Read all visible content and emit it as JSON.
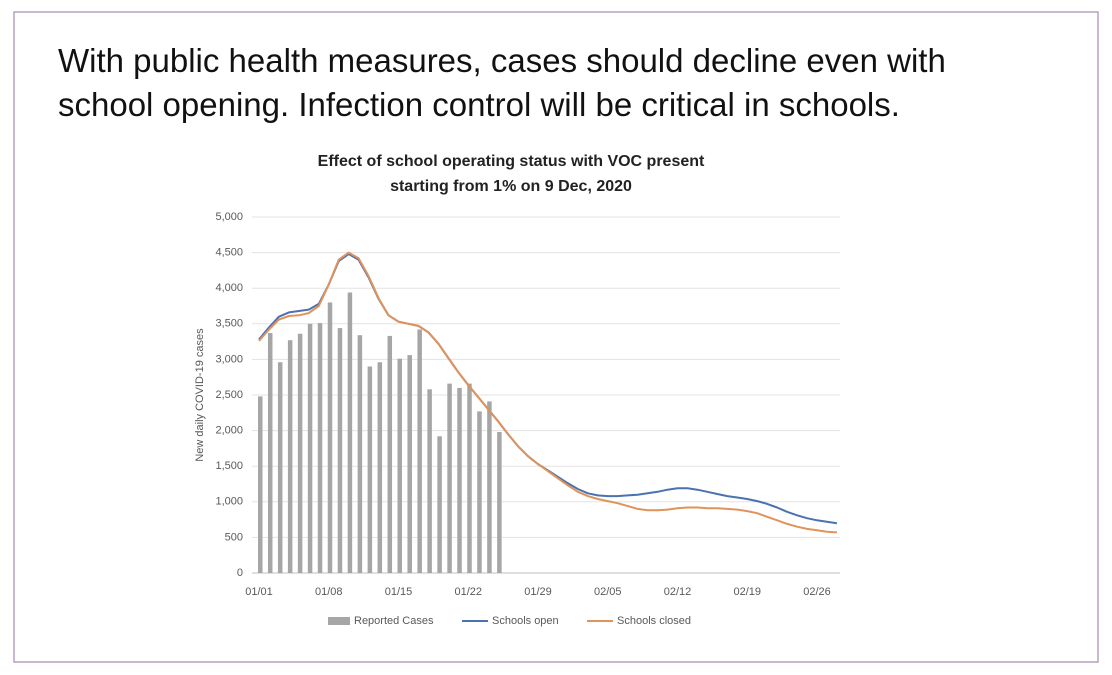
{
  "heading": [
    "With public health measures, cases should decline even with",
    "school opening. Infection control will be critical in schools."
  ],
  "chart_data": {
    "type": "bar_line",
    "title": [
      "Effect of school operating status with VOC present",
      "starting from 1% on 9 Dec, 2020"
    ],
    "y_label": "New daily COVID-19 cases",
    "categories": [
      "01/01",
      null,
      null,
      null,
      null,
      null,
      null,
      "01/08",
      null,
      null,
      null,
      null,
      null,
      null,
      "01/15",
      null,
      null,
      null,
      null,
      null,
      null,
      "01/22",
      null,
      null,
      null,
      null,
      null,
      null,
      "01/29",
      null,
      null,
      null,
      null,
      null,
      null,
      "02/05",
      null,
      null,
      null,
      null,
      null,
      null,
      "02/12",
      null,
      null,
      null,
      null,
      null,
      null,
      "02/19",
      null,
      null,
      null,
      null,
      null,
      null,
      "02/26",
      null,
      null
    ],
    "series": [
      {
        "name": "Reported Cases",
        "kind": "bar",
        "color": "#a6a6a6",
        "values": [
          2480,
          3370,
          2960,
          3270,
          3360,
          3500,
          3510,
          3800,
          3440,
          3940,
          3340,
          2900,
          2960,
          3330,
          3010,
          3060,
          3420,
          2580,
          1920,
          2660,
          2600,
          2660,
          2270,
          2410,
          1980,
          null,
          null,
          null,
          null,
          null,
          null,
          null,
          null,
          null,
          null,
          null,
          null,
          null,
          null,
          null,
          null,
          null,
          null,
          null,
          null,
          null,
          null,
          null,
          null,
          null,
          null,
          null,
          null,
          null,
          null,
          null,
          null,
          null,
          null
        ]
      },
      {
        "name": "Schools open",
        "kind": "line",
        "color": "#4a72b0",
        "values": [
          3280,
          3450,
          3600,
          3660,
          3680,
          3700,
          3780,
          4050,
          4380,
          4480,
          4400,
          4150,
          3850,
          3620,
          3530,
          3500,
          3470,
          3380,
          3220,
          3020,
          2820,
          2640,
          2470,
          2300,
          2130,
          1950,
          1780,
          1640,
          1530,
          1440,
          1350,
          1260,
          1180,
          1120,
          1090,
          1080,
          1080,
          1090,
          1100,
          1120,
          1140,
          1170,
          1190,
          1190,
          1170,
          1140,
          1110,
          1080,
          1060,
          1040,
          1010,
          970,
          920,
          860,
          810,
          770,
          740,
          720,
          700
        ]
      },
      {
        "name": "Schools closed",
        "kind": "line",
        "color": "#e0935a",
        "values": [
          3260,
          3420,
          3560,
          3610,
          3620,
          3650,
          3750,
          4050,
          4400,
          4500,
          4420,
          4170,
          3860,
          3620,
          3530,
          3500,
          3470,
          3380,
          3220,
          3020,
          2820,
          2640,
          2470,
          2300,
          2130,
          1950,
          1780,
          1640,
          1530,
          1430,
          1330,
          1230,
          1140,
          1080,
          1040,
          1010,
          980,
          940,
          900,
          880,
          880,
          890,
          910,
          920,
          920,
          910,
          910,
          900,
          890,
          870,
          840,
          790,
          740,
          690,
          650,
          620,
          600,
          580,
          570
        ]
      }
    ],
    "ylim": [
      0,
      5000
    ],
    "yticks": [
      0,
      500,
      {
        "value": 1000,
        "label": "1,000"
      },
      {
        "value": 1500,
        "label": "1,500"
      },
      {
        "value": 2000,
        "label": "2,000"
      },
      {
        "value": 2500,
        "label": "2,500"
      },
      {
        "value": 3000,
        "label": "3,000"
      },
      {
        "value": 3500,
        "label": "3,500"
      },
      {
        "value": 4000,
        "label": "4,000"
      },
      {
        "value": 4500,
        "label": "4,500"
      },
      {
        "value": 5000,
        "label": "5,000"
      }
    ],
    "grid": true,
    "legend": "bottom"
  }
}
